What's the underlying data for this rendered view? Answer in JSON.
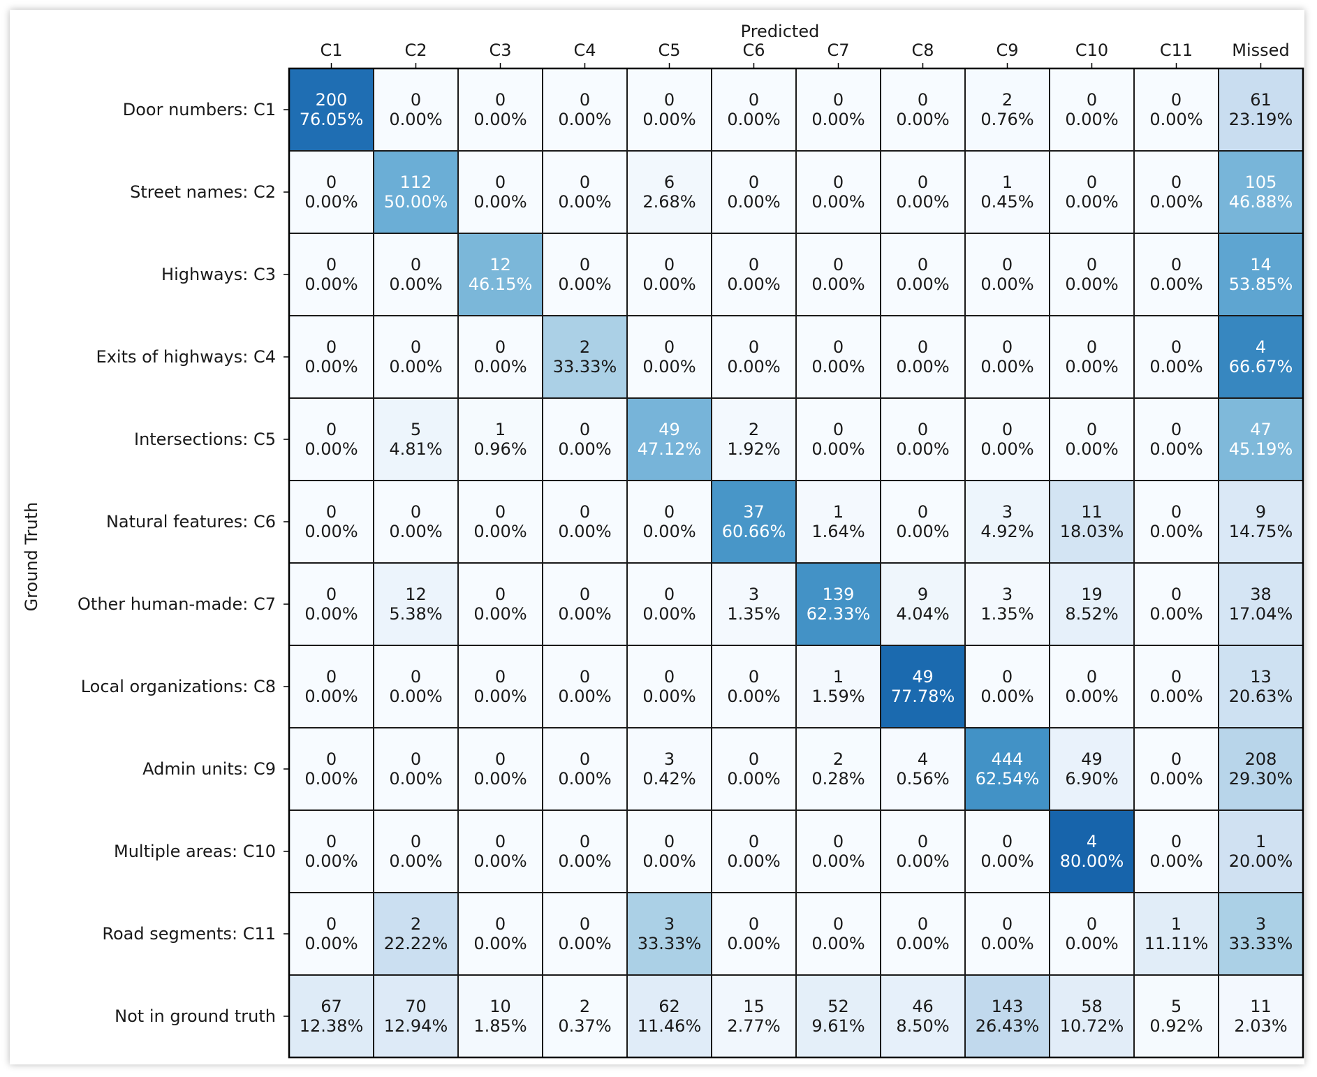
{
  "chart_data": {
    "type": "heatmap",
    "xlabel": "Predicted",
    "ylabel": "Ground Truth",
    "x_categories": [
      "C1",
      "C2",
      "C3",
      "C4",
      "C5",
      "C6",
      "C7",
      "C8",
      "C9",
      "C10",
      "C11",
      "Missed"
    ],
    "y_categories": [
      "Door numbers: C1",
      "Street names: C2",
      "Highways: C3",
      "Exits of highways: C4",
      "Intersections: C5",
      "Natural features: C6",
      "Other human-made: C7",
      "Local organizations: C8",
      "Admin units: C9",
      "Multiple areas: C10",
      "Road segments: C11",
      "Not in ground truth"
    ],
    "counts": [
      [
        200,
        0,
        0,
        0,
        0,
        0,
        0,
        0,
        2,
        0,
        0,
        61
      ],
      [
        0,
        112,
        0,
        0,
        6,
        0,
        0,
        0,
        1,
        0,
        0,
        105
      ],
      [
        0,
        0,
        12,
        0,
        0,
        0,
        0,
        0,
        0,
        0,
        0,
        14
      ],
      [
        0,
        0,
        0,
        2,
        0,
        0,
        0,
        0,
        0,
        0,
        0,
        4
      ],
      [
        0,
        5,
        1,
        0,
        49,
        2,
        0,
        0,
        0,
        0,
        0,
        47
      ],
      [
        0,
        0,
        0,
        0,
        0,
        37,
        1,
        0,
        3,
        11,
        0,
        9
      ],
      [
        0,
        12,
        0,
        0,
        0,
        3,
        139,
        9,
        3,
        19,
        0,
        38
      ],
      [
        0,
        0,
        0,
        0,
        0,
        0,
        1,
        49,
        0,
        0,
        0,
        13
      ],
      [
        0,
        0,
        0,
        0,
        3,
        0,
        2,
        4,
        444,
        49,
        0,
        208
      ],
      [
        0,
        0,
        0,
        0,
        0,
        0,
        0,
        0,
        0,
        4,
        0,
        1
      ],
      [
        0,
        2,
        0,
        0,
        3,
        0,
        0,
        0,
        0,
        0,
        1,
        3
      ],
      [
        67,
        70,
        10,
        2,
        62,
        15,
        52,
        46,
        143,
        58,
        5,
        11
      ]
    ],
    "percentages": [
      [
        "76.05%",
        "0.00%",
        "0.00%",
        "0.00%",
        "0.00%",
        "0.00%",
        "0.00%",
        "0.00%",
        "0.76%",
        "0.00%",
        "0.00%",
        "23.19%"
      ],
      [
        "0.00%",
        "50.00%",
        "0.00%",
        "0.00%",
        "2.68%",
        "0.00%",
        "0.00%",
        "0.00%",
        "0.45%",
        "0.00%",
        "0.00%",
        "46.88%"
      ],
      [
        "0.00%",
        "0.00%",
        "46.15%",
        "0.00%",
        "0.00%",
        "0.00%",
        "0.00%",
        "0.00%",
        "0.00%",
        "0.00%",
        "0.00%",
        "53.85%"
      ],
      [
        "0.00%",
        "0.00%",
        "0.00%",
        "33.33%",
        "0.00%",
        "0.00%",
        "0.00%",
        "0.00%",
        "0.00%",
        "0.00%",
        "0.00%",
        "66.67%"
      ],
      [
        "0.00%",
        "4.81%",
        "0.96%",
        "0.00%",
        "47.12%",
        "1.92%",
        "0.00%",
        "0.00%",
        "0.00%",
        "0.00%",
        "0.00%",
        "45.19%"
      ],
      [
        "0.00%",
        "0.00%",
        "0.00%",
        "0.00%",
        "0.00%",
        "60.66%",
        "1.64%",
        "0.00%",
        "4.92%",
        "18.03%",
        "0.00%",
        "14.75%"
      ],
      [
        "0.00%",
        "5.38%",
        "0.00%",
        "0.00%",
        "0.00%",
        "1.35%",
        "62.33%",
        "4.04%",
        "1.35%",
        "8.52%",
        "0.00%",
        "17.04%"
      ],
      [
        "0.00%",
        "0.00%",
        "0.00%",
        "0.00%",
        "0.00%",
        "0.00%",
        "1.59%",
        "77.78%",
        "0.00%",
        "0.00%",
        "0.00%",
        "20.63%"
      ],
      [
        "0.00%",
        "0.00%",
        "0.00%",
        "0.00%",
        "0.42%",
        "0.00%",
        "0.28%",
        "0.56%",
        "62.54%",
        "6.90%",
        "0.00%",
        "29.30%"
      ],
      [
        "0.00%",
        "0.00%",
        "0.00%",
        "0.00%",
        "0.00%",
        "0.00%",
        "0.00%",
        "0.00%",
        "0.00%",
        "80.00%",
        "0.00%",
        "20.00%"
      ],
      [
        "0.00%",
        "22.22%",
        "0.00%",
        "0.00%",
        "33.33%",
        "0.00%",
        "0.00%",
        "0.00%",
        "0.00%",
        "0.00%",
        "11.11%",
        "33.33%"
      ],
      [
        "12.38%",
        "12.94%",
        "1.85%",
        "0.37%",
        "11.46%",
        "2.77%",
        "9.61%",
        "8.50%",
        "26.43%",
        "10.72%",
        "0.92%",
        "2.03%"
      ]
    ],
    "colormap": "Blues",
    "colormap_stops": [
      "#f7fbff",
      "#deebf7",
      "#c6dbef",
      "#9ecae1",
      "#6baed6",
      "#4292c6",
      "#2171b5",
      "#08519c",
      "#08306b"
    ],
    "text_color_dark": "#1a1a1a",
    "text_color_light": "#ffffff",
    "grid": true
  }
}
